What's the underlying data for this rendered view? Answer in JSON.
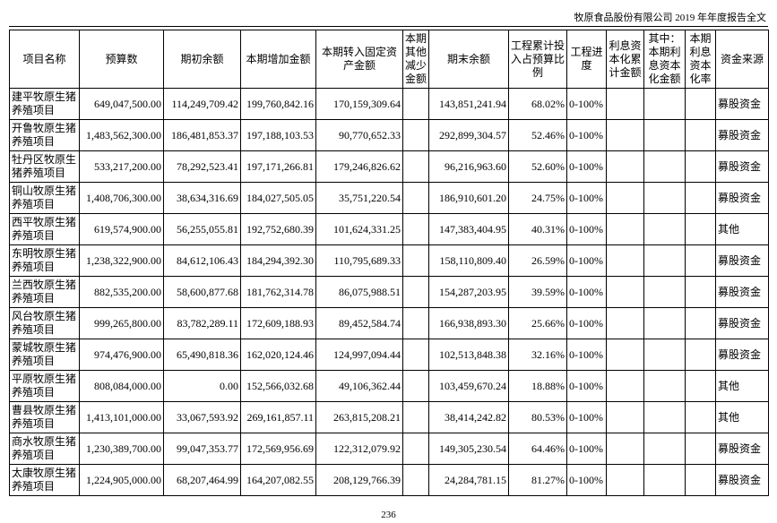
{
  "header": {
    "title": "牧原食品股份有限公司 2019 年年度报告全文"
  },
  "table": {
    "columns": [
      "项目名称",
      "预算数",
      "期初余额",
      "本期增加金额",
      "本期转入固定资产金额",
      "本期其他减少金额",
      "期末余额",
      "工程累计投入占预算比例",
      "工程进度",
      "利息资本化累计金额",
      "其中：本期利息资本化金额",
      "本期利息资本化率",
      "资金来源"
    ],
    "rows": [
      [
        "建平牧原生猪养殖项目",
        "649,047,500.00",
        "114,249,709.42",
        "199,760,842.16",
        "170,159,309.64",
        null,
        "143,851,241.94",
        "68.02%",
        "0-100%",
        null,
        null,
        null,
        "募股资金"
      ],
      [
        "开鲁牧原生猪养殖项目",
        "1,483,562,300.00",
        "186,481,853.37",
        "197,188,103.53",
        "90,770,652.33",
        null,
        "292,899,304.57",
        "52.46%",
        "0-100%",
        null,
        null,
        null,
        "募股资金"
      ],
      [
        "牡丹区牧原生猪养殖项目",
        "533,217,200.00",
        "78,292,523.41",
        "197,171,266.81",
        "179,246,826.62",
        null,
        "96,216,963.60",
        "52.60%",
        "0-100%",
        null,
        null,
        null,
        "募股资金"
      ],
      [
        "铜山牧原生猪养殖项目",
        "1,408,706,300.00",
        "38,634,316.69",
        "184,027,505.05",
        "35,751,220.54",
        null,
        "186,910,601.20",
        "24.75%",
        "0-100%",
        null,
        null,
        null,
        "募股资金"
      ],
      [
        "西平牧原生猪养殖项目",
        "619,574,900.00",
        "56,255,055.81",
        "192,752,680.39",
        "101,624,331.25",
        null,
        "147,383,404.95",
        "40.31%",
        "0-100%",
        null,
        null,
        null,
        "其他"
      ],
      [
        "东明牧原生猪养殖项目",
        "1,238,322,900.00",
        "84,612,106.43",
        "184,294,392.30",
        "110,795,689.33",
        null,
        "158,110,809.40",
        "26.59%",
        "0-100%",
        null,
        null,
        null,
        "募股资金"
      ],
      [
        "兰西牧原生猪养殖项目",
        "882,535,200.00",
        "58,600,877.68",
        "181,762,314.78",
        "86,075,988.51",
        null,
        "154,287,203.95",
        "39.59%",
        "0-100%",
        null,
        null,
        null,
        "募股资金"
      ],
      [
        "风台牧原生猪养殖项目",
        "999,265,800.00",
        "83,782,289.11",
        "172,609,188.93",
        "89,452,584.74",
        null,
        "166,938,893.30",
        "25.66%",
        "0-100%",
        null,
        null,
        null,
        "募股资金"
      ],
      [
        "蒙城牧原生猪养殖项目",
        "974,476,900.00",
        "65,490,818.36",
        "162,020,124.46",
        "124,997,094.44",
        null,
        "102,513,848.38",
        "32.16%",
        "0-100%",
        null,
        null,
        null,
        "募股资金"
      ],
      [
        "平原牧原生猪养殖项目",
        "808,084,000.00",
        "0.00",
        "152,566,032.68",
        "49,106,362.44",
        null,
        "103,459,670.24",
        "18.88%",
        "0-100%",
        null,
        null,
        null,
        "其他"
      ],
      [
        "曹县牧原生猪养殖项目",
        "1,413,101,000.00",
        "33,067,593.92",
        "269,161,857.11",
        "263,815,208.21",
        null,
        "38,414,242.82",
        "80.53%",
        "0-100%",
        null,
        null,
        null,
        "其他"
      ],
      [
        "商水牧原生猪养殖项目",
        "1,230,389,700.00",
        "99,047,353.77",
        "172,569,956.69",
        "122,312,079.92",
        null,
        "149,305,230.54",
        "64.46%",
        "0-100%",
        null,
        null,
        null,
        "募股资金"
      ],
      [
        "太康牧原生猪养殖项目",
        "1,224,905,000.00",
        "68,207,464.99",
        "164,207,082.55",
        "208,129,766.39",
        null,
        "24,284,781.15",
        "81.27%",
        "0-100%",
        null,
        null,
        null,
        "募股资金"
      ]
    ]
  },
  "footer": {
    "page_number": "236"
  }
}
